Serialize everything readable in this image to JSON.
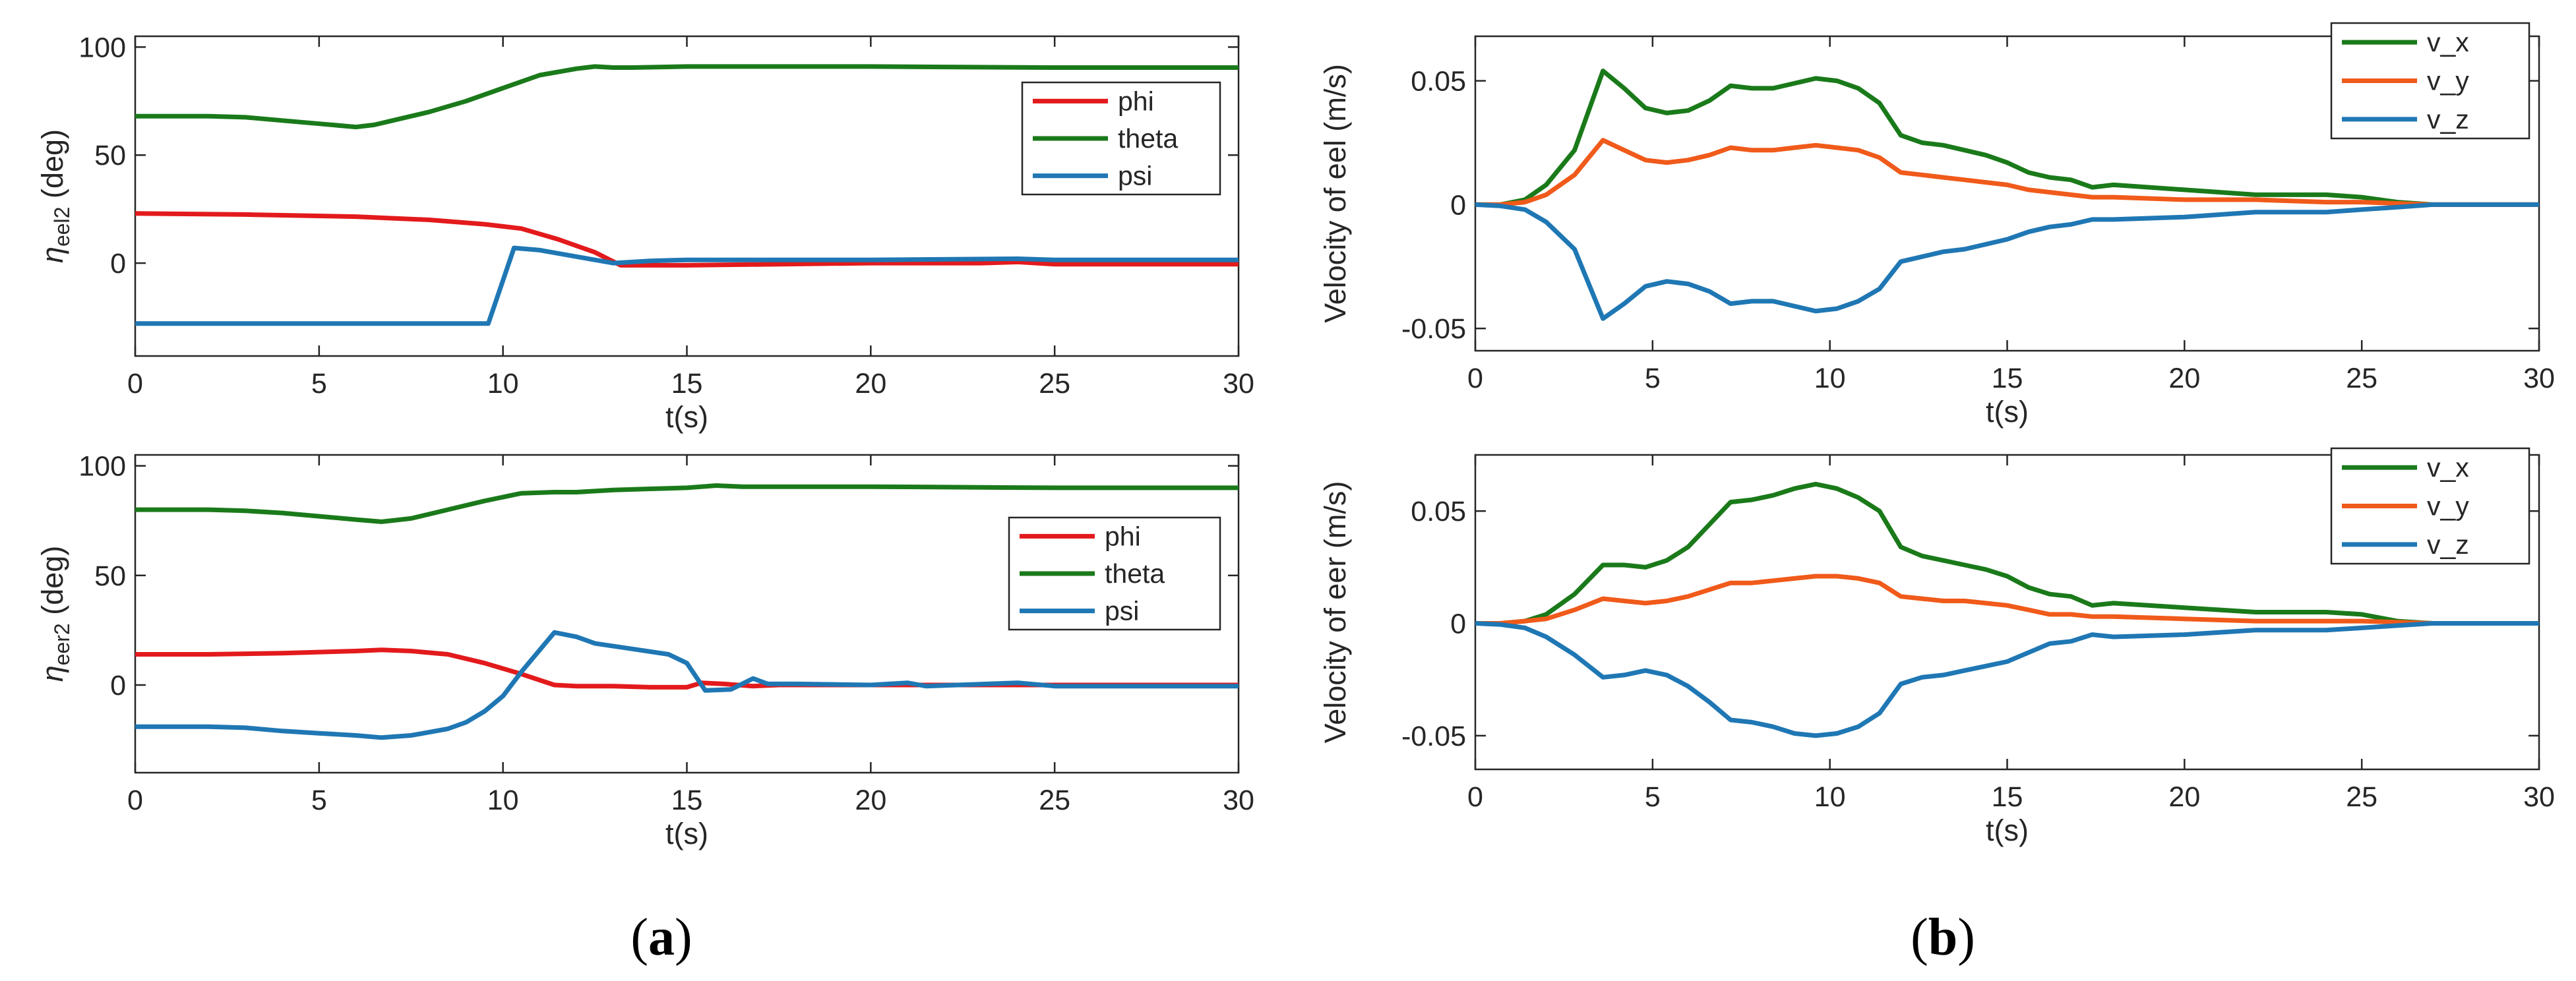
{
  "colors": {
    "phi": "#e31a1c",
    "theta": "#1a7a1a",
    "psi": "#1f77b4",
    "v_x": "#1a7a1a",
    "v_y": "#f05a1a",
    "v_z": "#1f77b4",
    "axis": "#262626"
  },
  "captions": [
    {
      "open": "(",
      "letter": "a",
      "close": ")"
    },
    {
      "open": "(",
      "letter": "b",
      "close": ")"
    }
  ],
  "chart_data": [
    {
      "id": "a-top",
      "type": "line",
      "ylabel_symbol": "η",
      "ylabel_sub": "eel2",
      "ylabel_unit": " (deg)",
      "xlabel": "t(s)",
      "xlim": [
        0,
        30
      ],
      "ylim": [
        -43,
        105
      ],
      "xticks": [
        0,
        5,
        10,
        15,
        20,
        25,
        30
      ],
      "xtick_labels": [
        "0",
        "5",
        "10",
        "15",
        "20",
        "25",
        "30"
      ],
      "yticks": [
        0,
        50,
        100
      ],
      "ytick_labels": [
        "0",
        "50",
        "100"
      ],
      "legend_position": "right",
      "series": [
        {
          "name": "phi",
          "color": "#e31a1c",
          "x": [
            0,
            3,
            6,
            8,
            9.5,
            10.5,
            11.5,
            12.5,
            13.2,
            14,
            15,
            20,
            23,
            24,
            25,
            30
          ],
          "y": [
            23,
            22.5,
            21.5,
            20,
            18,
            16,
            11,
            5,
            -1,
            -1,
            -1,
            0,
            0,
            0.5,
            -0.5,
            -0.5
          ]
        },
        {
          "name": "theta",
          "color": "#1a7a1a",
          "x": [
            0,
            2,
            3,
            4,
            5,
            6,
            6.5,
            7,
            8,
            9,
            10,
            11,
            12,
            12.5,
            13,
            13.5,
            15,
            20,
            25,
            30
          ],
          "y": [
            68,
            68,
            67.5,
            66,
            64.5,
            63,
            64,
            66,
            70,
            75,
            81,
            87,
            90,
            91,
            90.5,
            90.5,
            91,
            91,
            90.5,
            90.5
          ]
        },
        {
          "name": "psi",
          "color": "#1f77b4",
          "x": [
            0,
            9.6,
            10.3,
            11,
            12,
            13,
            14,
            15,
            20,
            24,
            25,
            30
          ],
          "y": [
            -28,
            -28,
            7,
            6,
            3,
            0,
            1,
            1.5,
            1.5,
            2,
            1.5,
            1.5
          ]
        }
      ]
    },
    {
      "id": "a-bottom",
      "type": "line",
      "ylabel_symbol": "η",
      "ylabel_sub": "eer2",
      "ylabel_unit": " (deg)",
      "xlabel": "t(s)",
      "xlim": [
        0,
        30
      ],
      "ylim": [
        -40,
        105
      ],
      "xticks": [
        0,
        5,
        10,
        15,
        20,
        25,
        30
      ],
      "xtick_labels": [
        "0",
        "5",
        "10",
        "15",
        "20",
        "25",
        "30"
      ],
      "yticks": [
        0,
        50,
        100
      ],
      "ytick_labels": [
        "0",
        "50",
        "100"
      ],
      "legend_position": "right",
      "series": [
        {
          "name": "phi",
          "color": "#e31a1c",
          "x": [
            0,
            2,
            4,
            6,
            6.7,
            7.5,
            8.5,
            9.5,
            10.5,
            11.4,
            12,
            13,
            14,
            15,
            15.4,
            16,
            16.8,
            17.5,
            20,
            24,
            30
          ],
          "y": [
            14,
            14,
            14.5,
            15.5,
            16,
            15.5,
            14,
            10,
            5,
            0,
            -0.5,
            -0.5,
            -1,
            -1,
            1,
            0.5,
            -0.5,
            0,
            0,
            0,
            0
          ]
        },
        {
          "name": "theta",
          "color": "#1a7a1a",
          "x": [
            0,
            2,
            3,
            4,
            5,
            6,
            6.7,
            7.5,
            8.5,
            9.5,
            10.5,
            11.4,
            12,
            13,
            14,
            15,
            15.8,
            16.5,
            17,
            20,
            25,
            30
          ],
          "y": [
            80,
            80,
            79.5,
            78.5,
            77,
            75.5,
            74.5,
            76,
            80,
            84,
            87.5,
            88,
            88,
            89,
            89.5,
            90,
            91,
            90.5,
            90.5,
            90.5,
            90,
            90
          ]
        },
        {
          "name": "psi",
          "color": "#1f77b4",
          "x": [
            0,
            2,
            3,
            4,
            5,
            6,
            6.7,
            7.5,
            8.5,
            9,
            9.5,
            10,
            10.5,
            11.4,
            12,
            12.5,
            13.5,
            14.5,
            15,
            15.5,
            16.2,
            16.8,
            17.2,
            18,
            20,
            21,
            21.5,
            24,
            25,
            30
          ],
          "y": [
            -19,
            -19,
            -19.5,
            -21,
            -22,
            -23,
            -24,
            -23,
            -20,
            -17,
            -12,
            -5,
            6,
            24,
            22,
            19,
            16.5,
            14,
            10,
            -2.5,
            -2,
            3,
            0.5,
            0.5,
            0,
            1,
            -0.5,
            1,
            -0.5,
            -0.5
          ]
        }
      ]
    },
    {
      "id": "b-top",
      "type": "line",
      "ylabel": "Velocity of eel (m/s)",
      "xlabel": "t(s)",
      "xlim": [
        0,
        30
      ],
      "ylim": [
        -0.059,
        0.068
      ],
      "xticks": [
        0,
        5,
        10,
        15,
        20,
        25,
        30
      ],
      "xtick_labels": [
        "0",
        "5",
        "10",
        "15",
        "20",
        "25",
        "30"
      ],
      "yticks": [
        -0.05,
        0,
        0.05
      ],
      "ytick_labels": [
        "-0.05",
        "0",
        "0.05"
      ],
      "legend_position": "top-right",
      "series": [
        {
          "name": "v_x",
          "color": "#1a7a1a",
          "x": [
            0,
            0.7,
            1.4,
            2,
            2.8,
            3.6,
            4.2,
            4.8,
            5.4,
            6,
            6.6,
            7.2,
            7.8,
            8.4,
            9,
            9.6,
            10.2,
            10.8,
            11.4,
            12,
            12.6,
            13.2,
            13.8,
            14.4,
            15,
            15.6,
            16.2,
            16.8,
            17.4,
            18,
            20,
            22,
            24,
            25,
            26,
            27,
            30
          ],
          "y": [
            0,
            0,
            0.002,
            0.008,
            0.022,
            0.054,
            0.047,
            0.039,
            0.037,
            0.038,
            0.042,
            0.048,
            0.047,
            0.047,
            0.049,
            0.051,
            0.05,
            0.047,
            0.041,
            0.028,
            0.025,
            0.024,
            0.022,
            0.02,
            0.017,
            0.013,
            0.011,
            0.01,
            0.007,
            0.008,
            0.006,
            0.004,
            0.004,
            0.003,
            0.001,
            0,
            0
          ]
        },
        {
          "name": "v_y",
          "color": "#f05a1a",
          "x": [
            0,
            0.7,
            1.4,
            2,
            2.8,
            3.6,
            4.2,
            4.8,
            5.4,
            6,
            6.6,
            7.2,
            7.8,
            8.4,
            9,
            9.6,
            10.2,
            10.8,
            11.4,
            12,
            12.6,
            13.2,
            13.8,
            14.4,
            15,
            15.6,
            16.2,
            16.8,
            17.4,
            18,
            20,
            22,
            24,
            25,
            26,
            27,
            30
          ],
          "y": [
            0,
            0,
            0.001,
            0.004,
            0.012,
            0.026,
            0.022,
            0.018,
            0.017,
            0.018,
            0.02,
            0.023,
            0.022,
            0.022,
            0.023,
            0.024,
            0.023,
            0.022,
            0.019,
            0.013,
            0.012,
            0.011,
            0.01,
            0.009,
            0.008,
            0.006,
            0.005,
            0.004,
            0.003,
            0.003,
            0.002,
            0.002,
            0.001,
            0.001,
            0.0005,
            0,
            0
          ]
        },
        {
          "name": "v_z",
          "color": "#1f77b4",
          "x": [
            0,
            0.7,
            1.4,
            2,
            2.8,
            3.6,
            4.2,
            4.8,
            5.4,
            6,
            6.6,
            7.2,
            7.8,
            8.4,
            9,
            9.6,
            10.2,
            10.8,
            11.4,
            12,
            12.6,
            13.2,
            13.8,
            14.4,
            15,
            15.6,
            16.2,
            16.8,
            17.4,
            18,
            20,
            22,
            24,
            25,
            26,
            27,
            30
          ],
          "y": [
            0,
            -0.0005,
            -0.002,
            -0.007,
            -0.018,
            -0.046,
            -0.04,
            -0.033,
            -0.031,
            -0.032,
            -0.035,
            -0.04,
            -0.039,
            -0.039,
            -0.041,
            -0.043,
            -0.042,
            -0.039,
            -0.034,
            -0.023,
            -0.021,
            -0.019,
            -0.018,
            -0.016,
            -0.014,
            -0.011,
            -0.009,
            -0.008,
            -0.006,
            -0.006,
            -0.005,
            -0.003,
            -0.003,
            -0.002,
            -0.001,
            0,
            0
          ]
        }
      ]
    },
    {
      "id": "b-bottom",
      "type": "line",
      "ylabel": "Velocity of eer (m/s)",
      "xlabel": "t(s)",
      "xlim": [
        0,
        30
      ],
      "ylim": [
        -0.065,
        0.075
      ],
      "xticks": [
        0,
        5,
        10,
        15,
        20,
        25,
        30
      ],
      "xtick_labels": [
        "0",
        "5",
        "10",
        "15",
        "20",
        "25",
        "30"
      ],
      "yticks": [
        -0.05,
        0,
        0.05
      ],
      "ytick_labels": [
        "-0.05",
        "0",
        "0.05"
      ],
      "legend_position": "top-right",
      "series": [
        {
          "name": "v_x",
          "color": "#1a7a1a",
          "x": [
            0,
            0.7,
            1.4,
            2,
            2.8,
            3.6,
            4.2,
            4.8,
            5.4,
            6,
            6.6,
            7.2,
            7.8,
            8.4,
            9,
            9.6,
            10.2,
            10.8,
            11.4,
            12,
            12.6,
            13.2,
            13.8,
            14.4,
            15,
            15.6,
            16.2,
            16.8,
            17.4,
            18,
            20,
            22,
            24,
            25,
            26,
            27,
            30
          ],
          "y": [
            0,
            0,
            0.001,
            0.004,
            0.013,
            0.026,
            0.026,
            0.025,
            0.028,
            0.034,
            0.044,
            0.054,
            0.055,
            0.057,
            0.06,
            0.062,
            0.06,
            0.056,
            0.05,
            0.034,
            0.03,
            0.028,
            0.026,
            0.024,
            0.021,
            0.016,
            0.013,
            0.012,
            0.008,
            0.009,
            0.007,
            0.005,
            0.005,
            0.004,
            0.001,
            0,
            0
          ]
        },
        {
          "name": "v_y",
          "color": "#f05a1a",
          "x": [
            0,
            0.7,
            1.4,
            2,
            2.8,
            3.6,
            4.2,
            4.8,
            5.4,
            6,
            6.6,
            7.2,
            7.8,
            8.4,
            9,
            9.6,
            10.2,
            10.8,
            11.4,
            12,
            12.6,
            13.2,
            13.8,
            14.4,
            15,
            15.6,
            16.2,
            16.8,
            17.4,
            18,
            20,
            22,
            24,
            25,
            26,
            27,
            30
          ],
          "y": [
            0,
            0,
            0.001,
            0.002,
            0.006,
            0.011,
            0.01,
            0.009,
            0.01,
            0.012,
            0.015,
            0.018,
            0.018,
            0.019,
            0.02,
            0.021,
            0.021,
            0.02,
            0.018,
            0.012,
            0.011,
            0.01,
            0.01,
            0.009,
            0.008,
            0.006,
            0.004,
            0.004,
            0.003,
            0.003,
            0.002,
            0.001,
            0.001,
            0.001,
            0.0005,
            0,
            0
          ]
        },
        {
          "name": "v_z",
          "color": "#1f77b4",
          "x": [
            0,
            0.7,
            1.4,
            2,
            2.8,
            3.6,
            4.2,
            4.8,
            5.4,
            6,
            6.6,
            7.2,
            7.8,
            8.4,
            9,
            9.6,
            10.2,
            10.8,
            11.4,
            12,
            12.6,
            13.2,
            13.8,
            14.4,
            15,
            15.6,
            16.2,
            16.8,
            17.4,
            18,
            20,
            22,
            24,
            25,
            26,
            27,
            30
          ],
          "y": [
            0,
            -0.0005,
            -0.002,
            -0.006,
            -0.014,
            -0.024,
            -0.023,
            -0.021,
            -0.023,
            -0.028,
            -0.035,
            -0.043,
            -0.044,
            -0.046,
            -0.049,
            -0.05,
            -0.049,
            -0.046,
            -0.04,
            -0.027,
            -0.024,
            -0.023,
            -0.021,
            -0.019,
            -0.017,
            -0.013,
            -0.009,
            -0.008,
            -0.005,
            -0.006,
            -0.005,
            -0.003,
            -0.003,
            -0.002,
            -0.001,
            0,
            0
          ]
        }
      ]
    }
  ]
}
